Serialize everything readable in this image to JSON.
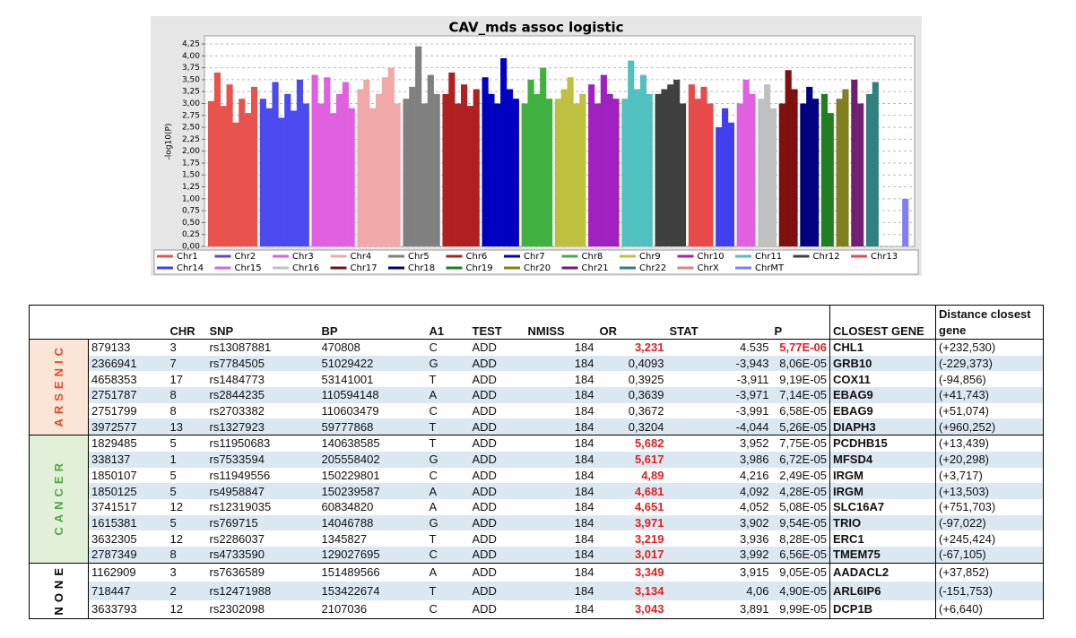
{
  "chart_data": {
    "type": "manhattan",
    "title": "CAV_mds assoc logistic",
    "y_label": "-log10(P)",
    "ylim": [
      0,
      4.42
    ],
    "yticks": [
      {
        "value": 0,
        "label": "0,00"
      },
      {
        "value": 0.25,
        "label": "0,25"
      },
      {
        "value": 0.5,
        "label": "0,50"
      },
      {
        "value": 0.75,
        "label": "0,75"
      },
      {
        "value": 1,
        "label": "1,00"
      },
      {
        "value": 1.25,
        "label": "1,25"
      },
      {
        "value": 1.5,
        "label": "1,50"
      },
      {
        "value": 1.75,
        "label": "1,75"
      },
      {
        "value": 2,
        "label": "2,00"
      },
      {
        "value": 2.25,
        "label": "2,25"
      },
      {
        "value": 2.5,
        "label": "2,50"
      },
      {
        "value": 2.75,
        "label": "2,75"
      },
      {
        "value": 3,
        "label": "3,00"
      },
      {
        "value": 3.25,
        "label": "3,25"
      },
      {
        "value": 3.5,
        "label": "3,50"
      },
      {
        "value": 3.75,
        "label": "3,75"
      },
      {
        "value": 4,
        "label": "4,00"
      },
      {
        "value": 4.25,
        "label": "4,25"
      }
    ],
    "grid": true,
    "series": [
      {
        "name": "Chr1",
        "color": "#e8534e",
        "values": [
          3.05,
          3.65,
          2.95,
          3.4,
          2.6,
          3.1,
          2.8,
          3.35
        ]
      },
      {
        "name": "Chr2",
        "color": "#4a4af0",
        "values": [
          3.1,
          2.9,
          3.45,
          2.7,
          3.2,
          2.85,
          3.5,
          3.0
        ]
      },
      {
        "name": "Chr3",
        "color": "#e060e0",
        "values": [
          3.6,
          3.0,
          3.55,
          2.8,
          3.2,
          3.45,
          2.9
        ]
      },
      {
        "name": "Chr4",
        "color": "#f0a8a8",
        "values": [
          3.3,
          3.5,
          2.9,
          3.2,
          3.55,
          3.75,
          3.0
        ]
      },
      {
        "name": "Chr5",
        "color": "#808080",
        "values": [
          3.1,
          3.35,
          4.2,
          3.0,
          3.6,
          3.2
        ]
      },
      {
        "name": "Chr6",
        "color": "#b02020",
        "values": [
          3.2,
          3.65,
          3.0,
          3.4,
          2.95,
          3.3
        ]
      },
      {
        "name": "Chr7",
        "color": "#0000c0",
        "values": [
          3.55,
          3.2,
          3.0,
          3.95,
          3.3,
          3.1
        ]
      },
      {
        "name": "Chr8",
        "color": "#40b040",
        "values": [
          3.0,
          3.5,
          3.2,
          3.75,
          3.1
        ]
      },
      {
        "name": "Chr9",
        "color": "#c0c040",
        "values": [
          3.1,
          3.3,
          3.55,
          3.0,
          3.2
        ]
      },
      {
        "name": "Chr10",
        "color": "#a020c0",
        "values": [
          3.4,
          3.0,
          3.6,
          3.2,
          3.1
        ]
      },
      {
        "name": "Chr11",
        "color": "#50c0c0",
        "values": [
          3.1,
          3.9,
          3.3,
          3.6,
          3.2
        ]
      },
      {
        "name": "Chr12",
        "color": "#404040",
        "values": [
          3.2,
          3.3,
          3.4,
          3.5,
          3.0
        ]
      },
      {
        "name": "Chr13",
        "color": "#e84a4a",
        "values": [
          3.4,
          3.1,
          3.35,
          3.0
        ]
      },
      {
        "name": "Chr14",
        "color": "#4040f0",
        "values": [
          2.5,
          2.9,
          2.6
        ]
      },
      {
        "name": "Chr15",
        "color": "#e060e0",
        "values": [
          3.0,
          3.5,
          3.2
        ]
      },
      {
        "name": "Chr16",
        "color": "#c0c0c0",
        "values": [
          3.1,
          3.4,
          2.9
        ]
      },
      {
        "name": "Chr17",
        "color": "#801010",
        "values": [
          3.0,
          3.7,
          3.3
        ]
      },
      {
        "name": "Chr18",
        "color": "#000080",
        "values": [
          3.0,
          3.35,
          3.1
        ]
      },
      {
        "name": "Chr19",
        "color": "#208020",
        "values": [
          3.2,
          2.8
        ]
      },
      {
        "name": "Chr20",
        "color": "#808020",
        "values": [
          3.1,
          3.3
        ]
      },
      {
        "name": "Chr21",
        "color": "#702070",
        "values": [
          3.5,
          3.0
        ]
      },
      {
        "name": "Chr22",
        "color": "#308080",
        "values": [
          3.2,
          3.45
        ]
      },
      {
        "name": "ChrX",
        "color": "#e08080",
        "values": [
          null,
          null,
          null
        ]
      },
      {
        "name": "ChrMT",
        "color": "#8080f0",
        "values": [
          1.0
        ]
      }
    ]
  },
  "table": {
    "columns": [
      "CHR",
      "SNP",
      "BP",
      "A1",
      "TEST",
      "NMISS",
      "OR",
      "STAT",
      "P",
      "CLOSEST GENE",
      "Distance closest gene"
    ],
    "groups": [
      {
        "label": "ARSENIC",
        "rows": [
          [
            "879133",
            "3",
            "rs13087881",
            "470808",
            "C",
            "ADD",
            "184",
            "3,231",
            "4.535",
            "5,77E-06",
            "CHL1",
            "(+232,530)"
          ],
          [
            "2366941",
            "7",
            "rs7784505",
            "51029422",
            "G",
            "ADD",
            "184",
            "0,4093",
            "-3,943",
            "8,06E-05",
            "GRB10",
            "(-229,373)"
          ],
          [
            "4658353",
            "17",
            "rs1484773",
            "53141001",
            "T",
            "ADD",
            "184",
            "0,3925",
            "-3,911",
            "9,19E-05",
            "COX11",
            "(-94,856)"
          ],
          [
            "2751787",
            "8",
            "rs2844235",
            "110594148",
            "A",
            "ADD",
            "184",
            "0,3639",
            "-3,971",
            "7,14E-05",
            "EBAG9",
            "(+41,743)"
          ],
          [
            "2751799",
            "8",
            "rs2703382",
            "110603479",
            "C",
            "ADD",
            "184",
            "0,3672",
            "-3,991",
            "6,58E-05",
            "EBAG9",
            "(+51,074)"
          ],
          [
            "3972577",
            "13",
            "rs1327923",
            "59777868",
            "T",
            "ADD",
            "184",
            "0,3204",
            "-4,044",
            "5,26E-05",
            "DIAPH3",
            "(+960,252)"
          ]
        ]
      },
      {
        "label": "CANCER",
        "rows": [
          [
            "1829485",
            "5",
            "rs11950683",
            "140638585",
            "T",
            "ADD",
            "184",
            "5,682",
            "3,952",
            "7,75E-05",
            "PCDHB15",
            "(+13,439)"
          ],
          [
            "338137",
            "1",
            "rs7533594",
            "205558402",
            "G",
            "ADD",
            "184",
            "5,617",
            "3,986",
            "6,72E-05",
            "MFSD4",
            "(+20,298)"
          ],
          [
            "1850107",
            "5",
            "rs11949556",
            "150229801",
            "C",
            "ADD",
            "184",
            "4,89",
            "4,216",
            "2,49E-05",
            "IRGM",
            "(+3,717)"
          ],
          [
            "1850125",
            "5",
            "rs4958847",
            "150239587",
            "A",
            "ADD",
            "184",
            "4,681",
            "4,092",
            "4,28E-05",
            "IRGM",
            "(+13,503)"
          ],
          [
            "3741517",
            "12",
            "rs12319035",
            "60834820",
            "A",
            "ADD",
            "184",
            "4,651",
            "4,052",
            "5,08E-05",
            "SLC16A7",
            "(+751,703)"
          ],
          [
            "1615381",
            "5",
            "rs769715",
            "14046788",
            "G",
            "ADD",
            "184",
            "3,971",
            "3,902",
            "9,54E-05",
            "TRIO",
            "(-97,022)"
          ],
          [
            "3632305",
            "12",
            "rs2286037",
            "1345827",
            "T",
            "ADD",
            "184",
            "3,219",
            "3,936",
            "8,28E-05",
            "ERC1",
            "(+245,424)"
          ],
          [
            "2787349",
            "8",
            "rs4733590",
            "129027695",
            "C",
            "ADD",
            "184",
            "3,017",
            "3,992",
            "6,56E-05",
            "TMEM75",
            "(-67,105)"
          ]
        ]
      },
      {
        "label": "NONE",
        "rows": [
          [
            "1162909",
            "3",
            "rs7636589",
            "151489566",
            "A",
            "ADD",
            "184",
            "3,349",
            "3,915",
            "9,05E-05",
            "AADACL2",
            "(+37,852)"
          ],
          [
            "718447",
            "2",
            "rs12471988",
            "153422674",
            "T",
            "ADD",
            "184",
            "3,134",
            "4,06",
            "4,90E-05",
            "ARL6IP6",
            "(-151,753)"
          ],
          [
            "3633793",
            "12",
            "rs2302098",
            "2107036",
            "C",
            "ADD",
            "184",
            "3,043",
            "3,891",
            "9,99E-05",
            "DCP1B",
            "(+6,640)"
          ]
        ]
      }
    ]
  }
}
